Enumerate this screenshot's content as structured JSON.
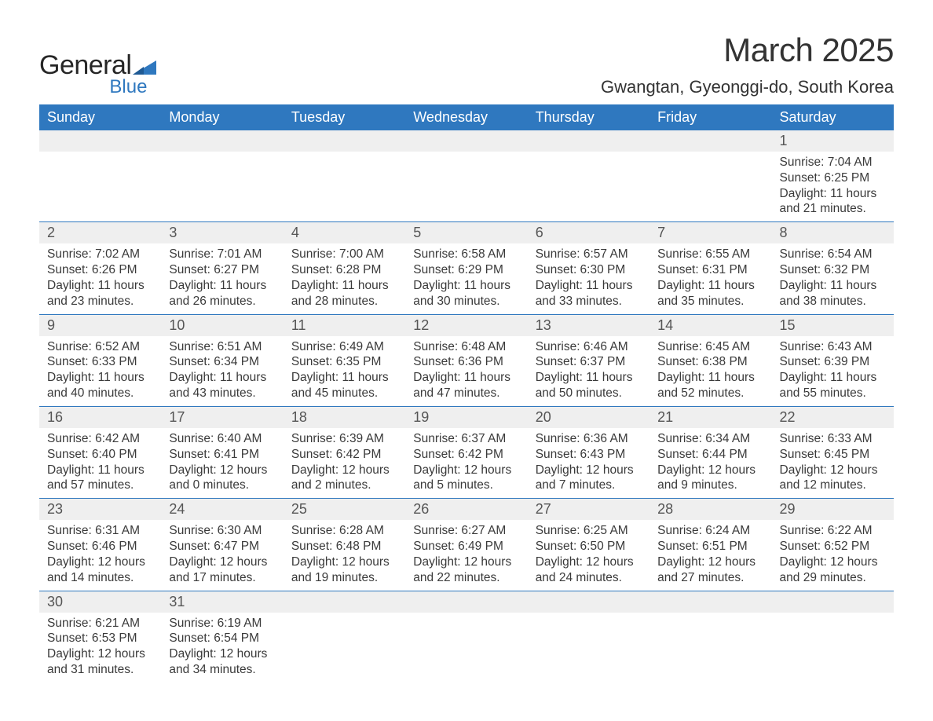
{
  "branding": {
    "word1": "General",
    "word2": "Blue",
    "triangle_color": "#2f78bf"
  },
  "title": {
    "month": "March 2025",
    "location": "Gwangtan, Gyeonggi-do, South Korea"
  },
  "theme": {
    "header_bg": "#2f78bf",
    "header_fg": "#ffffff",
    "daynum_bg": "#efefef",
    "daynum_fg": "#555555",
    "text_color": "#3a3a3a",
    "rule_color": "#2f78bf"
  },
  "weekdays": [
    "Sunday",
    "Monday",
    "Tuesday",
    "Wednesday",
    "Thursday",
    "Friday",
    "Saturday"
  ],
  "weeks": [
    [
      null,
      null,
      null,
      null,
      null,
      null,
      {
        "n": "1",
        "sunrise": "Sunrise: 7:04 AM",
        "sunset": "Sunset: 6:25 PM",
        "day1": "Daylight: 11 hours",
        "day2": "and 21 minutes."
      }
    ],
    [
      {
        "n": "2",
        "sunrise": "Sunrise: 7:02 AM",
        "sunset": "Sunset: 6:26 PM",
        "day1": "Daylight: 11 hours",
        "day2": "and 23 minutes."
      },
      {
        "n": "3",
        "sunrise": "Sunrise: 7:01 AM",
        "sunset": "Sunset: 6:27 PM",
        "day1": "Daylight: 11 hours",
        "day2": "and 26 minutes."
      },
      {
        "n": "4",
        "sunrise": "Sunrise: 7:00 AM",
        "sunset": "Sunset: 6:28 PM",
        "day1": "Daylight: 11 hours",
        "day2": "and 28 minutes."
      },
      {
        "n": "5",
        "sunrise": "Sunrise: 6:58 AM",
        "sunset": "Sunset: 6:29 PM",
        "day1": "Daylight: 11 hours",
        "day2": "and 30 minutes."
      },
      {
        "n": "6",
        "sunrise": "Sunrise: 6:57 AM",
        "sunset": "Sunset: 6:30 PM",
        "day1": "Daylight: 11 hours",
        "day2": "and 33 minutes."
      },
      {
        "n": "7",
        "sunrise": "Sunrise: 6:55 AM",
        "sunset": "Sunset: 6:31 PM",
        "day1": "Daylight: 11 hours",
        "day2": "and 35 minutes."
      },
      {
        "n": "8",
        "sunrise": "Sunrise: 6:54 AM",
        "sunset": "Sunset: 6:32 PM",
        "day1": "Daylight: 11 hours",
        "day2": "and 38 minutes."
      }
    ],
    [
      {
        "n": "9",
        "sunrise": "Sunrise: 6:52 AM",
        "sunset": "Sunset: 6:33 PM",
        "day1": "Daylight: 11 hours",
        "day2": "and 40 minutes."
      },
      {
        "n": "10",
        "sunrise": "Sunrise: 6:51 AM",
        "sunset": "Sunset: 6:34 PM",
        "day1": "Daylight: 11 hours",
        "day2": "and 43 minutes."
      },
      {
        "n": "11",
        "sunrise": "Sunrise: 6:49 AM",
        "sunset": "Sunset: 6:35 PM",
        "day1": "Daylight: 11 hours",
        "day2": "and 45 minutes."
      },
      {
        "n": "12",
        "sunrise": "Sunrise: 6:48 AM",
        "sunset": "Sunset: 6:36 PM",
        "day1": "Daylight: 11 hours",
        "day2": "and 47 minutes."
      },
      {
        "n": "13",
        "sunrise": "Sunrise: 6:46 AM",
        "sunset": "Sunset: 6:37 PM",
        "day1": "Daylight: 11 hours",
        "day2": "and 50 minutes."
      },
      {
        "n": "14",
        "sunrise": "Sunrise: 6:45 AM",
        "sunset": "Sunset: 6:38 PM",
        "day1": "Daylight: 11 hours",
        "day2": "and 52 minutes."
      },
      {
        "n": "15",
        "sunrise": "Sunrise: 6:43 AM",
        "sunset": "Sunset: 6:39 PM",
        "day1": "Daylight: 11 hours",
        "day2": "and 55 minutes."
      }
    ],
    [
      {
        "n": "16",
        "sunrise": "Sunrise: 6:42 AM",
        "sunset": "Sunset: 6:40 PM",
        "day1": "Daylight: 11 hours",
        "day2": "and 57 minutes."
      },
      {
        "n": "17",
        "sunrise": "Sunrise: 6:40 AM",
        "sunset": "Sunset: 6:41 PM",
        "day1": "Daylight: 12 hours",
        "day2": "and 0 minutes."
      },
      {
        "n": "18",
        "sunrise": "Sunrise: 6:39 AM",
        "sunset": "Sunset: 6:42 PM",
        "day1": "Daylight: 12 hours",
        "day2": "and 2 minutes."
      },
      {
        "n": "19",
        "sunrise": "Sunrise: 6:37 AM",
        "sunset": "Sunset: 6:42 PM",
        "day1": "Daylight: 12 hours",
        "day2": "and 5 minutes."
      },
      {
        "n": "20",
        "sunrise": "Sunrise: 6:36 AM",
        "sunset": "Sunset: 6:43 PM",
        "day1": "Daylight: 12 hours",
        "day2": "and 7 minutes."
      },
      {
        "n": "21",
        "sunrise": "Sunrise: 6:34 AM",
        "sunset": "Sunset: 6:44 PM",
        "day1": "Daylight: 12 hours",
        "day2": "and 9 minutes."
      },
      {
        "n": "22",
        "sunrise": "Sunrise: 6:33 AM",
        "sunset": "Sunset: 6:45 PM",
        "day1": "Daylight: 12 hours",
        "day2": "and 12 minutes."
      }
    ],
    [
      {
        "n": "23",
        "sunrise": "Sunrise: 6:31 AM",
        "sunset": "Sunset: 6:46 PM",
        "day1": "Daylight: 12 hours",
        "day2": "and 14 minutes."
      },
      {
        "n": "24",
        "sunrise": "Sunrise: 6:30 AM",
        "sunset": "Sunset: 6:47 PM",
        "day1": "Daylight: 12 hours",
        "day2": "and 17 minutes."
      },
      {
        "n": "25",
        "sunrise": "Sunrise: 6:28 AM",
        "sunset": "Sunset: 6:48 PM",
        "day1": "Daylight: 12 hours",
        "day2": "and 19 minutes."
      },
      {
        "n": "26",
        "sunrise": "Sunrise: 6:27 AM",
        "sunset": "Sunset: 6:49 PM",
        "day1": "Daylight: 12 hours",
        "day2": "and 22 minutes."
      },
      {
        "n": "27",
        "sunrise": "Sunrise: 6:25 AM",
        "sunset": "Sunset: 6:50 PM",
        "day1": "Daylight: 12 hours",
        "day2": "and 24 minutes."
      },
      {
        "n": "28",
        "sunrise": "Sunrise: 6:24 AM",
        "sunset": "Sunset: 6:51 PM",
        "day1": "Daylight: 12 hours",
        "day2": "and 27 minutes."
      },
      {
        "n": "29",
        "sunrise": "Sunrise: 6:22 AM",
        "sunset": "Sunset: 6:52 PM",
        "day1": "Daylight: 12 hours",
        "day2": "and 29 minutes."
      }
    ],
    [
      {
        "n": "30",
        "sunrise": "Sunrise: 6:21 AM",
        "sunset": "Sunset: 6:53 PM",
        "day1": "Daylight: 12 hours",
        "day2": "and 31 minutes."
      },
      {
        "n": "31",
        "sunrise": "Sunrise: 6:19 AM",
        "sunset": "Sunset: 6:54 PM",
        "day1": "Daylight: 12 hours",
        "day2": "and 34 minutes."
      },
      null,
      null,
      null,
      null,
      null
    ]
  ]
}
